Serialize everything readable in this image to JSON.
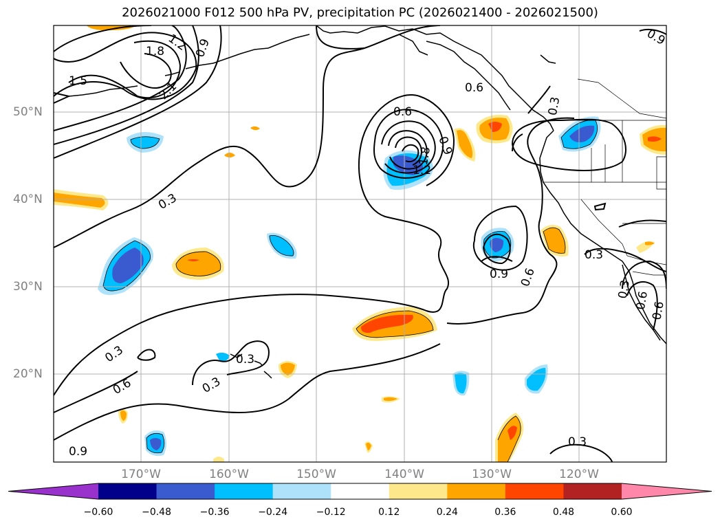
{
  "title": "2026021000 F012 500 hPa PV, precipitation PC (2026021400 - 2026021500)",
  "lon_labels": [
    "170°W",
    "160°W",
    "150°W",
    "140°W",
    "130°W",
    "120°W"
  ],
  "lat_labels": [
    "50°N",
    "40°N",
    "30°N",
    "20°N"
  ],
  "contour_labels": {
    "c1": "1.5",
    "c2": "1.8",
    "c3": "1.2",
    "c4": "0.9",
    "c5": "2.1",
    "c6": "0.3",
    "c7": "0.6",
    "c8": "0.9",
    "c9": "1.8",
    "c10": "1.2",
    "c11": "0.6",
    "c12": "0.9",
    "c13": "0.6",
    "c14": "0.3",
    "c15": "0.3",
    "c16": "0.3",
    "c17": "0.6",
    "c18": "0.9",
    "c19": "0.3",
    "c20": "0.3",
    "c21": "0.3",
    "c22": "0.6",
    "c23": "0.6",
    "c24": "0.3"
  },
  "colorbar": {
    "ticks": [
      "−0.60",
      "−0.48",
      "−0.36",
      "−0.24",
      "−0.12",
      "0.12",
      "0.24",
      "0.36",
      "0.48",
      "0.60"
    ],
    "colors": [
      "#9932cc",
      "#00008b",
      "#3a5bcf",
      "#00bfff",
      "#aee2fa",
      "#ffffff",
      "#fde98c",
      "#ffa500",
      "#ff4500",
      "#b22222",
      "#ff88aa"
    ]
  }
}
